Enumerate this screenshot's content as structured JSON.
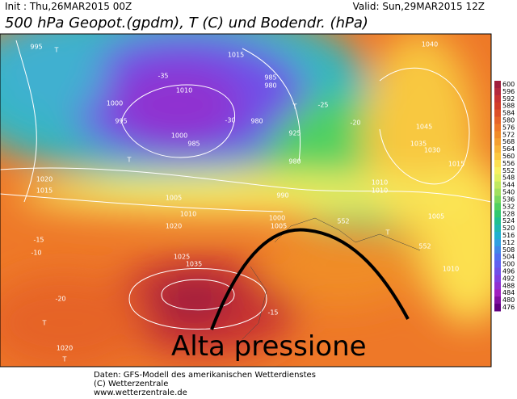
{
  "header": {
    "init": "Init : Thu,26MAR2015 00Z",
    "valid": "Valid: Sun,29MAR2015 12Z",
    "title": "500 hPa Geopot.(gpdm), T (C) und Bodendr. (hPa)"
  },
  "map": {
    "annotation": "Alta pressione",
    "labels": [
      "995",
      "1015",
      "1010",
      "1000",
      "995",
      "1000",
      "985",
      "985",
      "980",
      "980",
      "925",
      "980",
      "990",
      "1000",
      "1005",
      "1010",
      "1010",
      "1040",
      "1045",
      "1035",
      "1030",
      "1020",
      "1015",
      "1005",
      "1010",
      "1020",
      "1025",
      "1035",
      "1020",
      "1010",
      "1005",
      "1015",
      "-30",
      "-35",
      "-25",
      "-20",
      "-15",
      "-10",
      "-15",
      "-20",
      "552",
      "552",
      "T",
      "T",
      "T",
      "T",
      "T",
      "T"
    ]
  },
  "legend": {
    "levels": [
      600,
      596,
      592,
      588,
      584,
      580,
      576,
      572,
      568,
      564,
      560,
      556,
      552,
      548,
      544,
      540,
      536,
      532,
      528,
      524,
      520,
      516,
      512,
      508,
      504,
      500,
      496,
      492,
      488,
      484,
      480,
      476
    ],
    "colors": [
      "#a01e3c",
      "#b4283c",
      "#c83232",
      "#d23c28",
      "#dc5028",
      "#e66428",
      "#ee7828",
      "#f08c28",
      "#f4a030",
      "#f8b438",
      "#fcc840",
      "#fce050",
      "#f8f060",
      "#e0f060",
      "#c0e860",
      "#a0e060",
      "#78d860",
      "#50d060",
      "#30c870",
      "#20c090",
      "#20b8b0",
      "#20b0d0",
      "#30a0e0",
      "#4088e8",
      "#5070f0",
      "#6060f0",
      "#7050e8",
      "#8040e0",
      "#9030d0",
      "#a020c0",
      "#8010a0",
      "#600080"
    ]
  },
  "footer": {
    "lines": [
      "Daten: GFS-Modell des amerikanischen Wetterdienstes",
      "(C) Wetterzentrale",
      "www.wetterzentrale.de"
    ]
  }
}
